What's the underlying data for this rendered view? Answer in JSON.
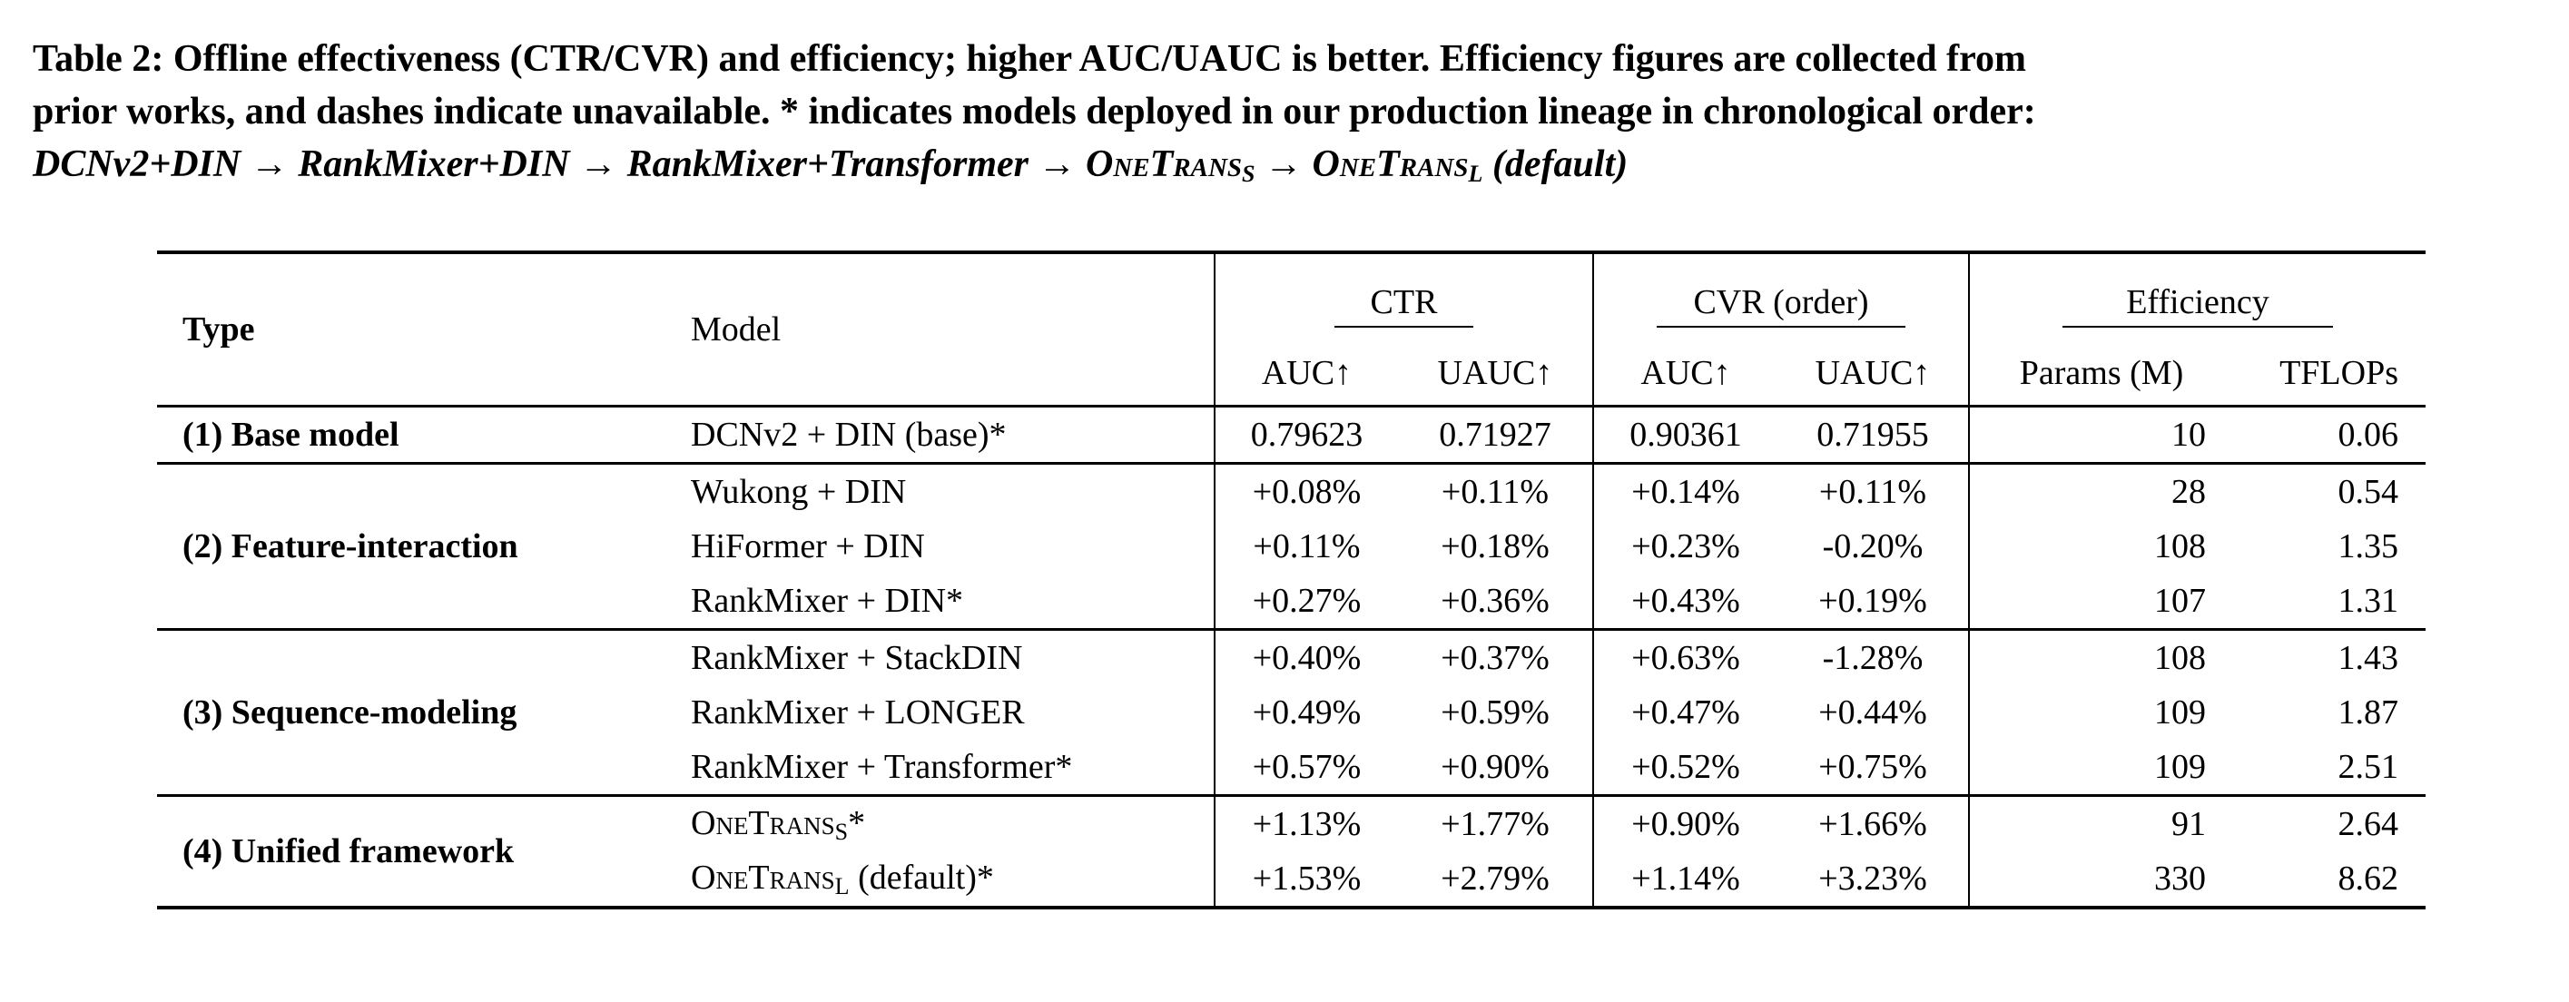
{
  "caption": {
    "line1": "Table 2: Offline effectiveness (CTR/CVR) and efficiency; higher AUC/UAUC is better. Efficiency figures are collected from",
    "line2": "prior works, and dashes indicate unavailable. * indicates models deployed in our production lineage in chronological order:",
    "line3a": "DCNv2+DIN → RankMixer+DIN → RankMixer+Transformer → ",
    "onetrans": "OneTrans",
    "sub_s": "S",
    "arrow": " → ",
    "sub_l": "L",
    "default": " (default)"
  },
  "header": {
    "type": "Type",
    "model": "Model",
    "ctr": "CTR",
    "cvr": "CVR (order)",
    "efficiency": "Efficiency",
    "auc": "AUC↑",
    "uauc": "UAUC↑",
    "params": "Params (M)",
    "tflops": "TFLOPs"
  },
  "groups": [
    {
      "type": "(1) Base model",
      "rows": [
        {
          "model": "DCNv2 + DIN (base)*",
          "ctr_auc": "0.79623",
          "ctr_uauc": "0.71927",
          "cvr_auc": "0.90361",
          "cvr_uauc": "0.71955",
          "params": "10",
          "tflops": "0.06"
        }
      ]
    },
    {
      "type": "(2) Feature-interaction",
      "rows": [
        {
          "model": "Wukong + DIN",
          "ctr_auc": "+0.08%",
          "ctr_uauc": "+0.11%",
          "cvr_auc": "+0.14%",
          "cvr_uauc": "+0.11%",
          "params": "28",
          "tflops": "0.54"
        },
        {
          "model": "HiFormer + DIN",
          "ctr_auc": "+0.11%",
          "ctr_uauc": "+0.18%",
          "cvr_auc": "+0.23%",
          "cvr_uauc": "-0.20%",
          "params": "108",
          "tflops": "1.35"
        },
        {
          "model": "RankMixer + DIN*",
          "ctr_auc": "+0.27%",
          "ctr_uauc": "+0.36%",
          "cvr_auc": "+0.43%",
          "cvr_uauc": "+0.19%",
          "params": "107",
          "tflops": "1.31"
        }
      ]
    },
    {
      "type": "(3) Sequence-modeling",
      "rows": [
        {
          "model": "RankMixer + StackDIN",
          "ctr_auc": "+0.40%",
          "ctr_uauc": "+0.37%",
          "cvr_auc": "+0.63%",
          "cvr_uauc": "-1.28%",
          "params": "108",
          "tflops": "1.43"
        },
        {
          "model": "RankMixer + LONGER",
          "ctr_auc": "+0.49%",
          "ctr_uauc": "+0.59%",
          "cvr_auc": "+0.47%",
          "cvr_uauc": "+0.44%",
          "params": "109",
          "tflops": "1.87"
        },
        {
          "model": "RankMixer + Transformer*",
          "ctr_auc": "+0.57%",
          "ctr_uauc": "+0.90%",
          "cvr_auc": "+0.52%",
          "cvr_uauc": "+0.75%",
          "params": "109",
          "tflops": "2.51"
        }
      ]
    },
    {
      "type": "(4) Unified framework",
      "rows": [
        {
          "model": "OneTrans",
          "model_sub": "S",
          "model_suffix": "*",
          "ctr_auc": "+1.13%",
          "ctr_uauc": "+1.77%",
          "cvr_auc": "+0.90%",
          "cvr_uauc": "+1.66%",
          "params": "91",
          "tflops": "2.64"
        },
        {
          "model": "OneTrans",
          "model_sub": "L",
          "model_suffix": " (default)*",
          "ctr_auc": "+1.53%",
          "ctr_uauc": "+2.79%",
          "cvr_auc": "+1.14%",
          "cvr_uauc": "+3.23%",
          "params": "330",
          "tflops": "8.62"
        }
      ]
    }
  ]
}
